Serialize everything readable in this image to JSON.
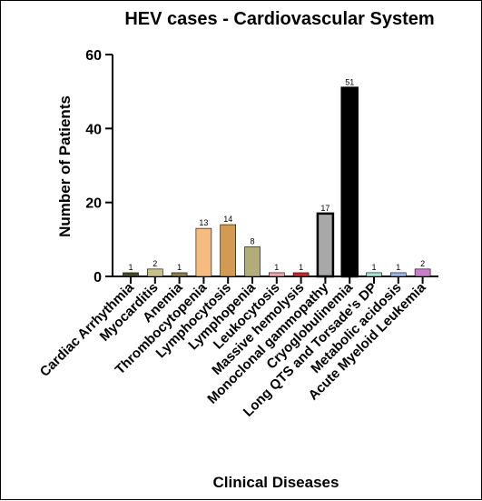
{
  "chart_data": {
    "type": "bar",
    "title": "HEV cases - Cardiovascular System",
    "xlabel": "Clinical Diseases",
    "ylabel": "Number of Patients",
    "ylim": [
      0,
      60
    ],
    "yticks": [
      0,
      20,
      40,
      60
    ],
    "grid": false,
    "categories": [
      "Cardiac Arrhythmia",
      "Myocarditis",
      "Anemia",
      "Thrombocytopenia",
      "Lymphocytosis",
      "Lymphopenia",
      "Leukocytosis",
      "Massive hemolysis",
      "Monoclonal gammopathy",
      "Cryoglobulinemia",
      "Long QTS and Torsade's DP",
      "Metabolic acidosis",
      "Acute Myeloid Leukemia"
    ],
    "values": [
      1,
      2,
      1,
      13,
      14,
      8,
      1,
      1,
      17,
      51,
      1,
      1,
      2
    ],
    "data_labels": [
      "1",
      "2",
      "1",
      "13",
      "14",
      "8",
      "1",
      "1",
      "17",
      "51",
      "1",
      "1",
      "2"
    ],
    "colors": [
      "#4a4a2a",
      "#c8c08a",
      "#8d7d50",
      "#f6bb80",
      "#d39a54",
      "#b3ab7a",
      "#f0a6aa",
      "#c42a2a",
      "#a8a8a8",
      "#000000",
      "#a8e6d6",
      "#9cb6e6",
      "#c87ec8"
    ]
  }
}
